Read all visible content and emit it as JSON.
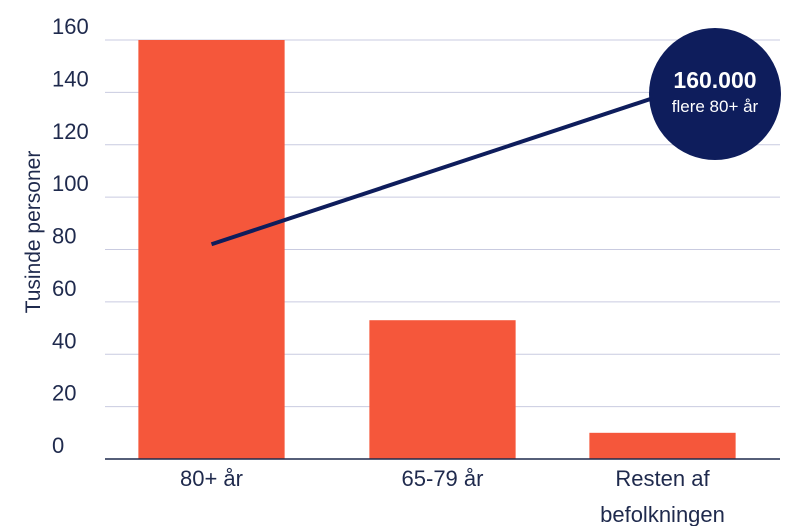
{
  "chart_data": {
    "type": "bar",
    "categories": [
      [
        "80+ år"
      ],
      [
        "65-79 år"
      ],
      [
        "Resten af",
        "befolkningen"
      ]
    ],
    "values": [
      160,
      53,
      10
    ],
    "ylabel": "Tusinde personer",
    "ylim": [
      0,
      160
    ],
    "yticks": [
      0,
      20,
      40,
      60,
      80,
      100,
      120,
      140,
      160
    ],
    "grid": true,
    "bar_color": "#f5573b",
    "grid_color": "#c9cbe0",
    "text_color": "#1f2a4d",
    "annotation": {
      "line1": "160.000",
      "line2": "flere 80+ år",
      "color": "#0e1d5c",
      "points_to_category": 0,
      "points_to_value": 82
    }
  }
}
